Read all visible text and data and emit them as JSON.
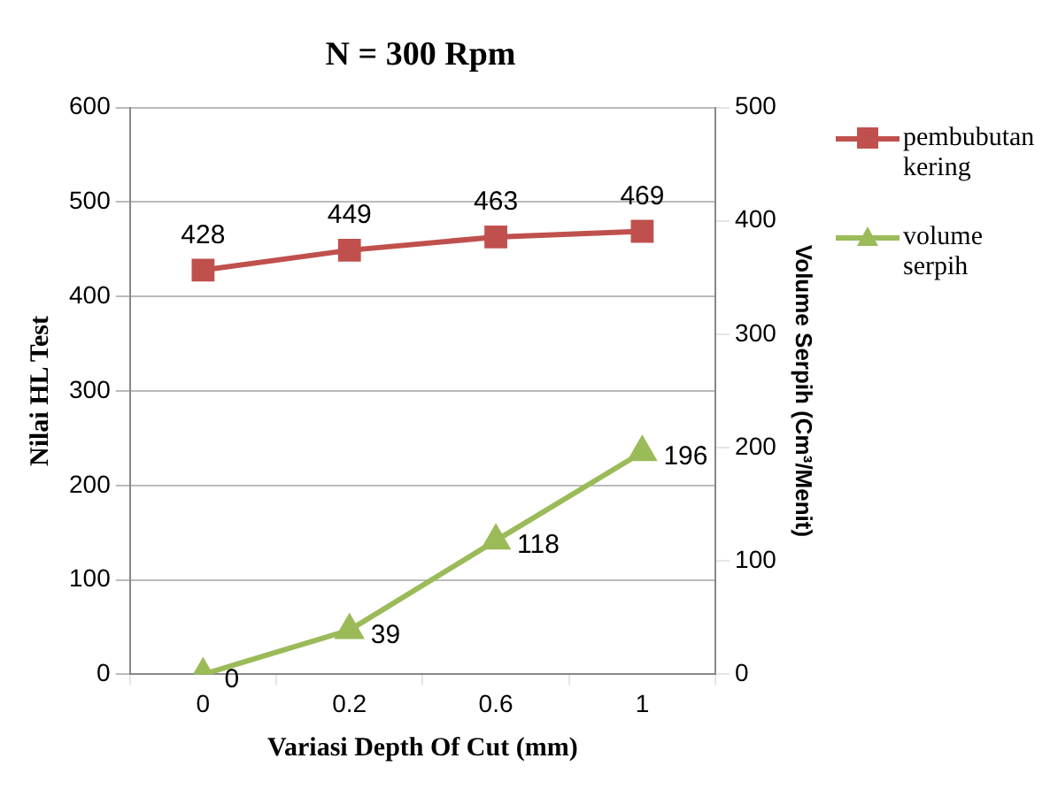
{
  "chart_data": {
    "type": "line",
    "title": "N = 300 Rpm",
    "xlabel": "Variasi Depth Of Cut (mm)",
    "ylabel": "Nilai HL Test",
    "y2label": "Volume Serpih (Cm³/Menit)",
    "categories": [
      "0",
      "0.2",
      "0.6",
      "1"
    ],
    "series": [
      {
        "name": "pembubutan kering",
        "color": "#c0504d",
        "marker": "square",
        "values": [
          428,
          449,
          463,
          469
        ]
      },
      {
        "name": "volume serpih",
        "color": "#9bbb59",
        "marker": "triangle",
        "axis": "y2",
        "values": [
          0,
          39,
          118,
          196
        ]
      }
    ],
    "ylim": [
      0,
      600
    ],
    "yticks": [
      0,
      100,
      200,
      300,
      400,
      500,
      600
    ],
    "y2lim": [
      0,
      500
    ],
    "y2ticks": [
      0,
      100,
      200,
      300,
      400,
      500
    ],
    "grid": "y",
    "legend": "right",
    "data_labels": true
  }
}
